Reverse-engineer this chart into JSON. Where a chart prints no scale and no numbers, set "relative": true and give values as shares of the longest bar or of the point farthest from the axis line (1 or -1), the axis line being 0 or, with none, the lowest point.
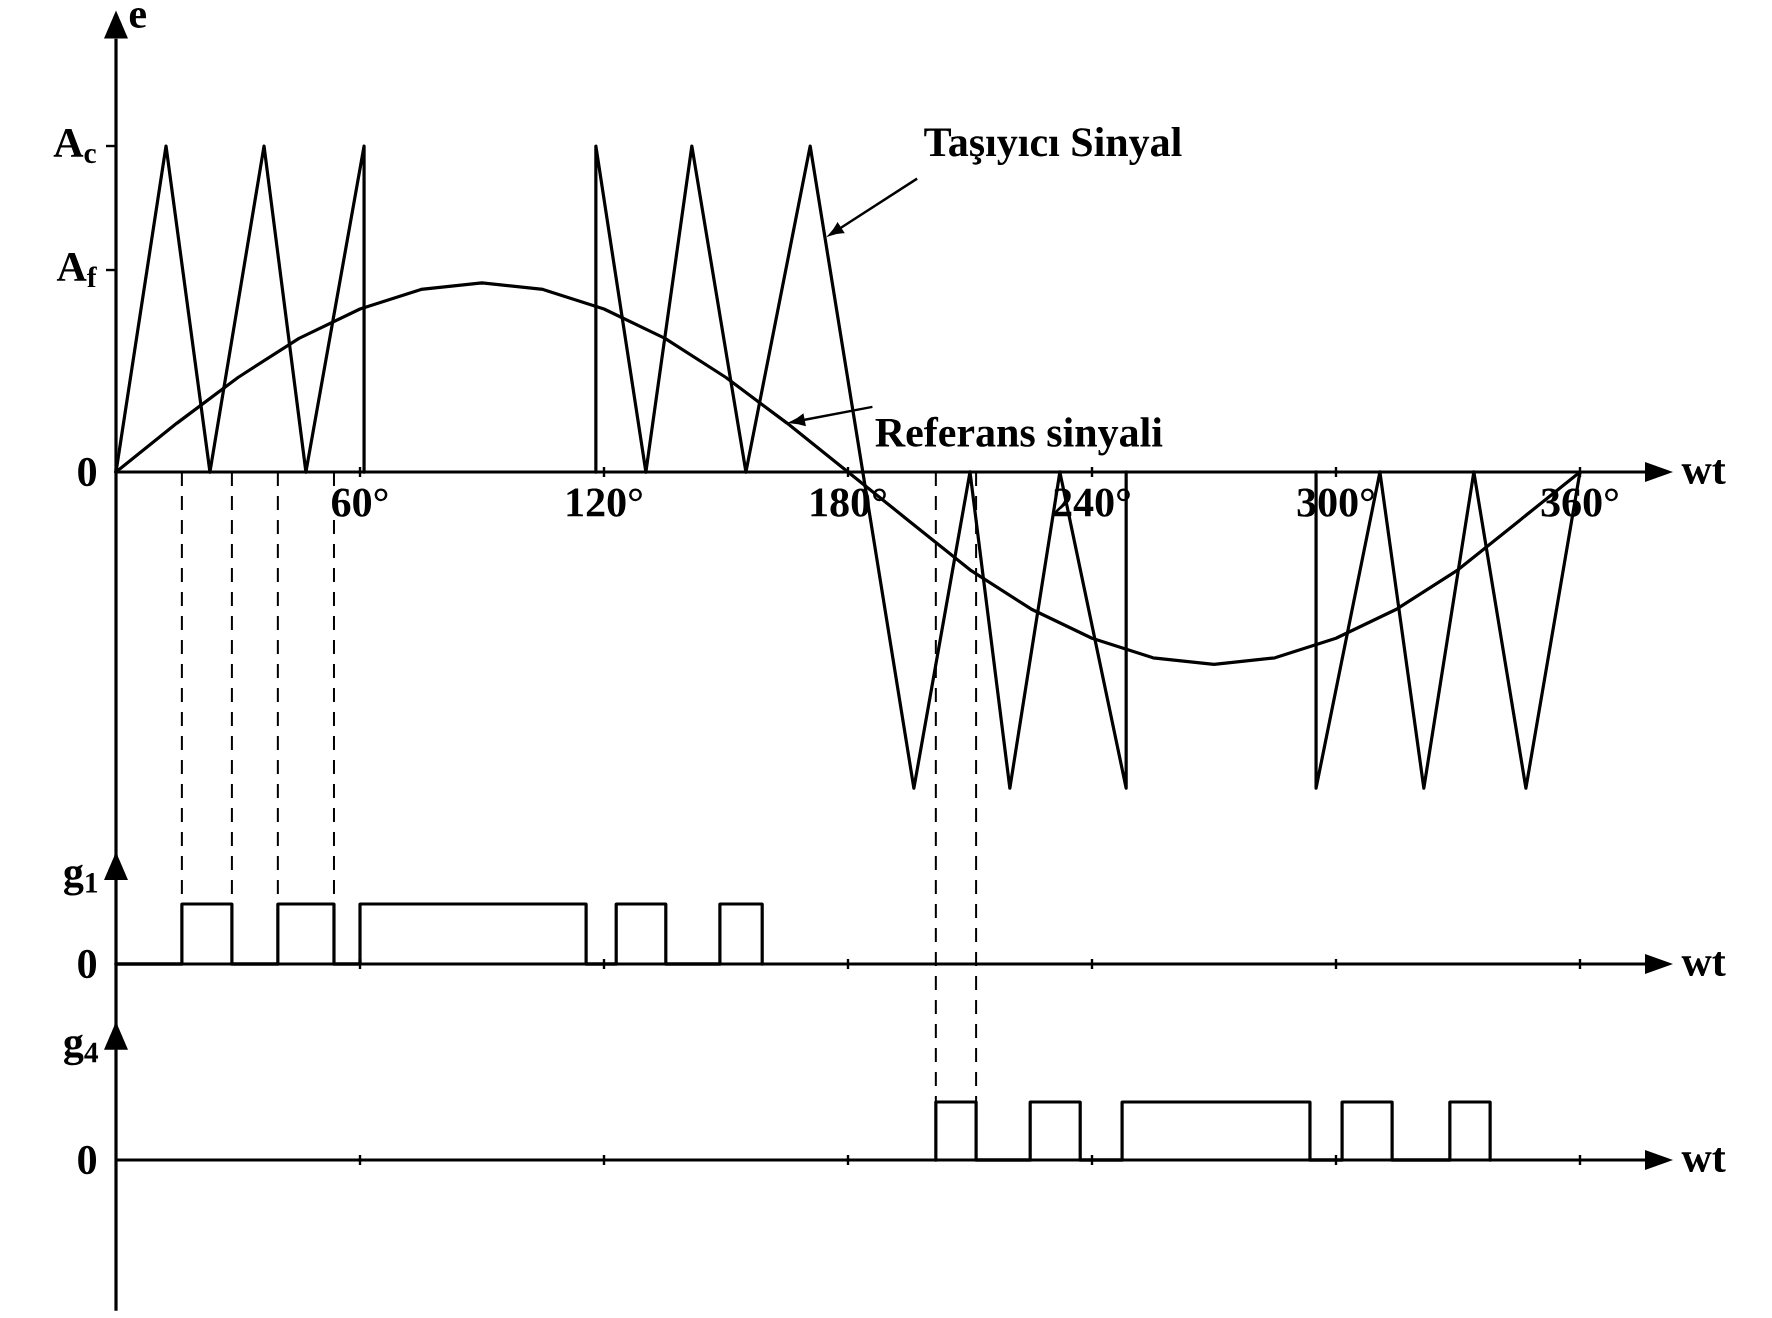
{
  "chart_data": [
    {
      "type": "line",
      "relative": true,
      "xlabel": "wt",
      "ylabel": "e",
      "xlim": [
        0,
        376
      ],
      "tick_labels": "x",
      "xticks": [
        {
          "value": 60,
          "label": "60°"
        },
        {
          "value": 120,
          "label": "120°"
        },
        {
          "value": 180,
          "label": "180°"
        },
        {
          "value": 240,
          "label": "240°"
        },
        {
          "value": 300,
          "label": "300°"
        },
        {
          "value": 360,
          "label": "360°"
        }
      ],
      "annotations": [
        "0",
        "A$_{f}$",
        "A$_{c}$"
      ],
      "series": [
        {
          "name": "Taşıyıcı Sinyal",
          "color": "#000000",
          "x": [
            0,
            12.3,
            23.1,
            36.4,
            46.7,
            61,
            61,
            90,
            118,
            118,
            130.3,
            141.6,
            154.9,
            170.7,
            196.2,
            210,
            219.8,
            232.1,
            248.4,
            248.4,
            270,
            295.1,
            295.1,
            310.8,
            321.6,
            333.9,
            346.7,
            360
          ],
          "values": [
            0,
            1,
            0,
            1,
            0,
            1,
            0,
            null,
            0,
            1,
            0,
            1,
            0,
            1,
            -0.97,
            0,
            -0.97,
            0,
            -0.97,
            0,
            null,
            0,
            -0.97,
            0,
            -0.97,
            0,
            -0.97,
            0
          ]
        },
        {
          "name": "Referans sinyali",
          "color": "#000000",
          "x": [
            0,
            15,
            30,
            45,
            60,
            75,
            90,
            105,
            120,
            135,
            150,
            165,
            180,
            195,
            210,
            225,
            240,
            255,
            270,
            285,
            300,
            315,
            330,
            345,
            360
          ],
          "values": [
            0,
            0.15,
            0.29,
            0.41,
            0.5,
            0.56,
            0.58,
            0.56,
            0.5,
            0.41,
            0.29,
            0.15,
            0,
            -0.15,
            -0.3,
            -0.42,
            -0.51,
            -0.57,
            -0.59,
            -0.57,
            -0.51,
            -0.42,
            -0.3,
            -0.15,
            0
          ]
        }
      ],
      "ref_lines": [
        {
          "axis": "x",
          "value": 16.2,
          "line_style": "dashed"
        },
        {
          "axis": "x",
          "value": 28.5,
          "line_style": "dashed"
        },
        {
          "axis": "x",
          "value": 39.8,
          "line_style": "dashed"
        },
        {
          "axis": "x",
          "value": 53.6,
          "line_style": "dashed"
        },
        {
          "axis": "x",
          "value": 201.6,
          "line_style": "dashed"
        },
        {
          "axis": "x",
          "value": 211.5,
          "line_style": "dashed"
        }
      ]
    },
    {
      "type": "line",
      "relative": true,
      "xlabel": "wt",
      "ylabel": "g$_{1}$",
      "xlim": [
        0,
        376
      ],
      "tick_labels": false,
      "xticks": [
        60,
        120,
        180,
        240,
        300,
        360
      ],
      "annotations": [
        "0"
      ],
      "series": [
        {
          "color": "#000000",
          "x": [
            0,
            16.2,
            16.2,
            28.5,
            28.5,
            39.8,
            39.8,
            53.6,
            53.6,
            60,
            60,
            115.6,
            115.6,
            123,
            123,
            135.2,
            135.2,
            148.5,
            148.5,
            158.9,
            158.9
          ],
          "values": [
            0,
            0,
            1,
            1,
            0,
            0,
            1,
            1,
            0,
            0,
            1,
            1,
            0,
            0,
            1,
            1,
            0,
            0,
            1,
            1,
            0
          ]
        }
      ]
    },
    {
      "type": "line",
      "relative": true,
      "xlabel": "wt",
      "ylabel": "g$_{4}$",
      "xlim": [
        0,
        376
      ],
      "tick_labels": false,
      "xticks": [
        60,
        120,
        180,
        240,
        300,
        360
      ],
      "annotations": [
        "0"
      ],
      "series": [
        {
          "color": "#000000",
          "x": [
            201.6,
            201.6,
            211.5,
            211.5,
            224.8,
            224.8,
            237.1,
            237.1,
            247.4,
            247.4,
            293.6,
            293.6,
            301.5,
            301.5,
            313.8,
            313.8,
            328,
            328,
            337.9,
            337.9
          ],
          "values": [
            0,
            1,
            1,
            0,
            0,
            1,
            1,
            0,
            0,
            1,
            1,
            0,
            0,
            1,
            1,
            0,
            0,
            1,
            1,
            0
          ]
        }
      ]
    }
  ]
}
